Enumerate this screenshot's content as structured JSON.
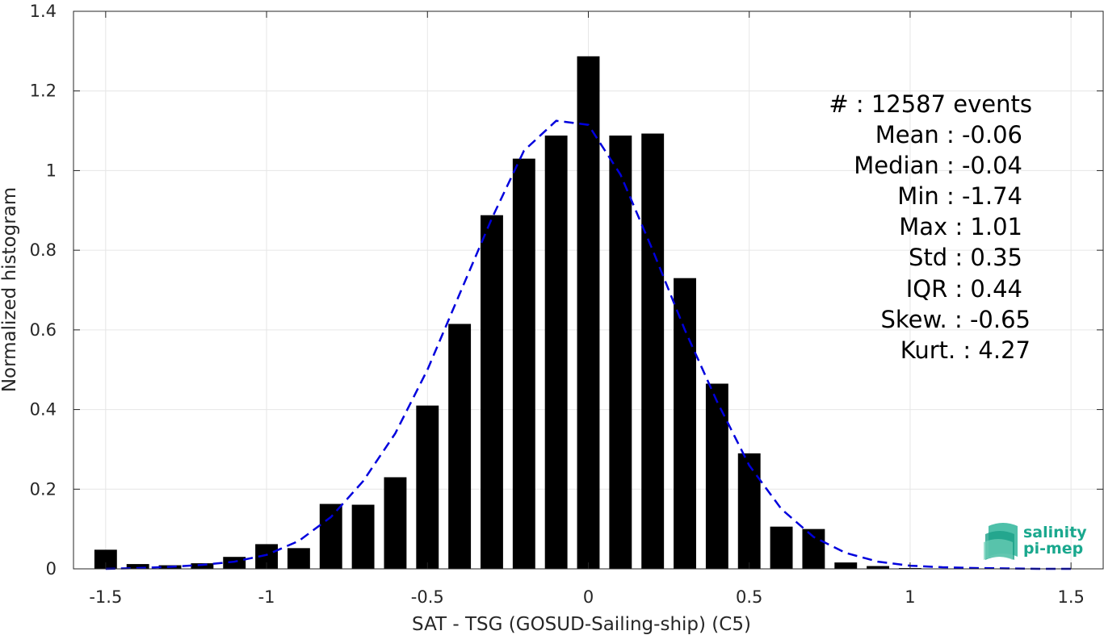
{
  "chart_data": {
    "type": "bar",
    "xlabel": "SAT - TSG (GOSUD-Sailing-ship) (C5)",
    "ylabel": "Normalized histogram",
    "xlim": [
      -1.6,
      1.6
    ],
    "ylim": [
      0,
      1.4
    ],
    "grid": true,
    "bar_width": 0.07,
    "xticks": [
      -1.5,
      -1,
      -0.5,
      0,
      0.5,
      1,
      1.5
    ],
    "xtick_labels": [
      "-1.5",
      "-1",
      "-0.5",
      "0",
      "0.5",
      "1",
      "1.5"
    ],
    "yticks": [
      0,
      0.2,
      0.4,
      0.6,
      0.8,
      1,
      1.2,
      1.4
    ],
    "ytick_labels": [
      "0",
      "0.2",
      "0.4",
      "0.6",
      "0.8",
      "1",
      "1.2",
      "1.4"
    ],
    "bars": {
      "x": [
        -1.5,
        -1.4,
        -1.3,
        -1.2,
        -1.1,
        -1.0,
        -0.9,
        -0.8,
        -0.7,
        -0.6,
        -0.5,
        -0.4,
        -0.3,
        -0.2,
        -0.1,
        0.0,
        0.1,
        0.2,
        0.3,
        0.4,
        0.5,
        0.6,
        0.7,
        0.8,
        0.9,
        1.0
      ],
      "values": [
        0.048,
        0.012,
        0.009,
        0.014,
        0.03,
        0.062,
        0.052,
        0.163,
        0.161,
        0.23,
        0.41,
        0.615,
        0.888,
        1.03,
        1.088,
        1.287,
        1.088,
        1.093,
        0.73,
        0.465,
        0.29,
        0.106,
        0.1,
        0.016,
        0.007,
        0.002
      ],
      "color": "#000000"
    },
    "fit_curve": {
      "style": "dashed",
      "color": "#0000dd",
      "x": [
        -1.5,
        -1.4,
        -1.3,
        -1.2,
        -1.1,
        -1.0,
        -0.9,
        -0.8,
        -0.7,
        -0.6,
        -0.5,
        -0.4,
        -0.3,
        -0.2,
        -0.1,
        0.0,
        0.1,
        0.2,
        0.3,
        0.4,
        0.5,
        0.6,
        0.7,
        0.8,
        0.9,
        1.0,
        1.1,
        1.2,
        1.3,
        1.4,
        1.5
      ],
      "values": [
        0.0,
        0.002,
        0.005,
        0.01,
        0.018,
        0.035,
        0.07,
        0.13,
        0.22,
        0.34,
        0.5,
        0.69,
        0.88,
        1.05,
        1.125,
        1.115,
        0.99,
        0.8,
        0.6,
        0.42,
        0.26,
        0.15,
        0.08,
        0.04,
        0.018,
        0.008,
        0.004,
        0.002,
        0.001,
        0.0,
        0.0
      ]
    },
    "stats": [
      "#  : 12587 events",
      "Mean : -0.06",
      "Median : -0.04",
      "Min : -1.74",
      "Max : 1.01",
      "Std : 0.35",
      "IQR : 0.44",
      "Skew. : -0.65",
      "Kurt. : 4.27"
    ]
  },
  "logo": {
    "line1": "salinity",
    "line2": "pi-mep",
    "color": "#1aa88e"
  }
}
